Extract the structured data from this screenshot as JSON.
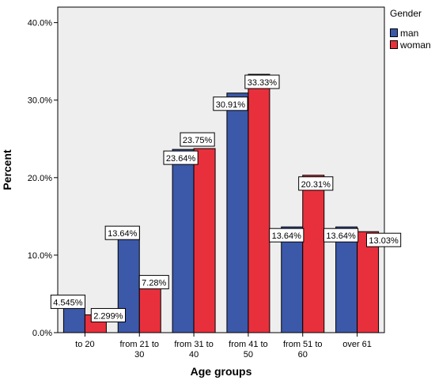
{
  "chart_data": {
    "type": "bar",
    "xlabel": "Age groups",
    "ylabel": "Percent",
    "ylim": [
      0,
      42
    ],
    "yticks": [
      "0.0%",
      "10.0%",
      "20.0%",
      "30.0%",
      "40.0%"
    ],
    "ytick_values": [
      0,
      10,
      20,
      30,
      40
    ],
    "categories": [
      [
        "to 20"
      ],
      [
        "from 21 to",
        "30"
      ],
      [
        "from 31 to",
        "40"
      ],
      [
        "from 41 to",
        "50"
      ],
      [
        "from 51 to",
        "60"
      ],
      [
        "over 61"
      ]
    ],
    "series": [
      {
        "name": "man",
        "color": "#3c58a8",
        "values": [
          4.545,
          13.64,
          23.64,
          30.91,
          13.64,
          13.64
        ],
        "labels": [
          "4.545%",
          "13.64%",
          "23.64%",
          "30.91%",
          "13.64%",
          "13.64%"
        ]
      },
      {
        "name": "woman",
        "color": "#e8303c",
        "values": [
          2.299,
          7.28,
          23.75,
          33.33,
          20.31,
          13.03
        ],
        "labels": [
          "2.299%",
          "7.28%",
          "23.75%",
          "33.33%",
          "20.31%",
          "13.03%"
        ]
      }
    ],
    "legend_title": "Gender",
    "legend_position": "top-right",
    "plot_background": "#eeeeee",
    "grid": false
  }
}
